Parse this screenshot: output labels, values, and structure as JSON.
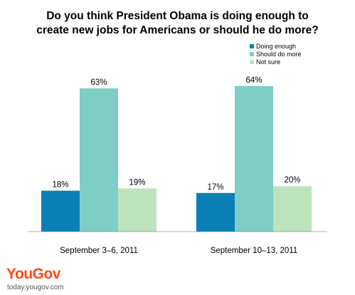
{
  "chart_data": {
    "type": "bar",
    "title": "Do you think President Obama is doing enough to\ncreate new jobs for Americans or should he do more?",
    "categories": [
      "September 3–6, 2011",
      "September 10–13, 2011"
    ],
    "series": [
      {
        "name": "Doing enough",
        "values": [
          18,
          17
        ],
        "labels": [
          "18%",
          "17%"
        ],
        "color": "#0a80b6"
      },
      {
        "name": "Should do more",
        "values": [
          63,
          64
        ],
        "labels": [
          "63%",
          "64%"
        ],
        "color": "#7ecdc7"
      },
      {
        "name": "Not sure",
        "values": [
          19,
          20
        ],
        "labels": [
          "19%",
          "20%"
        ],
        "color": "#bde4bd"
      }
    ],
    "ylim": [
      0,
      80
    ],
    "grid": false,
    "legend": "top-right"
  },
  "branding": {
    "logo": "YouGov",
    "website": "today.yougov.com",
    "logo_color": "#ff4a12"
  }
}
